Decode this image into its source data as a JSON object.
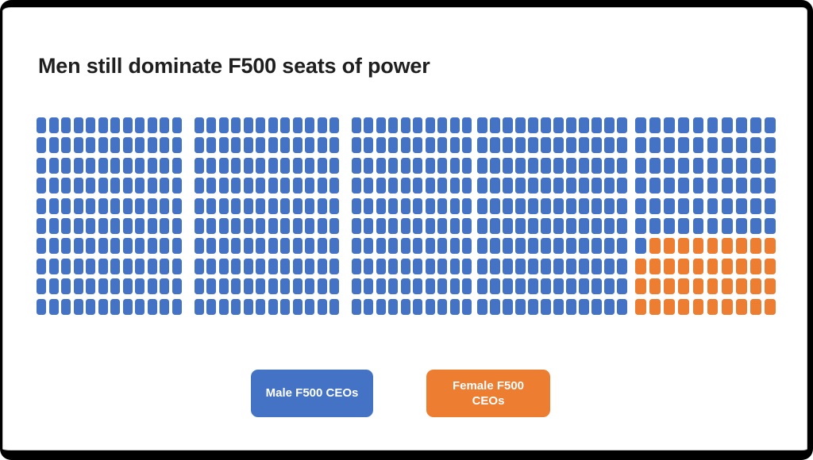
{
  "title": "Men still dominate F500 seats of power",
  "legend": {
    "male_label": "Male F500 CEOs",
    "female_label": "Female F500 CEOs"
  },
  "colors": {
    "male_blue": "#4472C4",
    "female_orange": "#ED7D31",
    "title_text": "#1F1F1F",
    "frame_border": "#000000",
    "background": "#FFFFFF"
  },
  "chart_data": {
    "type": "waffle",
    "title": "Men still dominate F500 seats of power",
    "rows": 10,
    "column_groups": [
      12,
      12,
      10,
      12,
      10
    ],
    "total_squares": 560,
    "series": [
      {
        "name": "Male F500 CEOs",
        "color": "#4472C4",
        "squares": 521
      },
      {
        "name": "Female F500 CEOs",
        "color": "#ED7D31",
        "squares": 39
      }
    ],
    "female_block_position": "bottom-right of last column group, rows 7-10",
    "legend_position": "bottom",
    "legend_entries": [
      "Male F500 CEOs",
      "Female F500 CEOs"
    ]
  }
}
